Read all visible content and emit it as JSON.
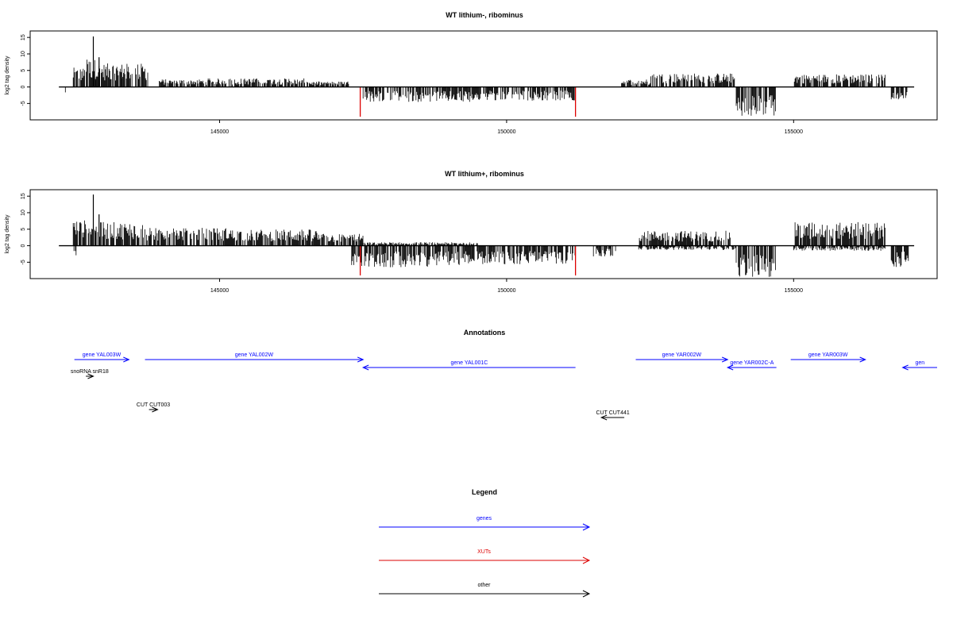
{
  "chart_data": [
    {
      "type": "bar",
      "title": "WT lithium-, ribominus",
      "xlabel": "",
      "ylabel": "log2 tag density",
      "xlim": [
        141700,
        157500
      ],
      "ylim": [
        -9,
        16
      ],
      "xticks": [
        "145000",
        "150000",
        "155000"
      ],
      "xtick_values": [
        145000,
        150000,
        155000
      ],
      "yticks": [
        "-5",
        "0",
        "5",
        "10",
        "15"
      ],
      "ytick_values": [
        -5,
        0,
        5,
        10,
        15
      ],
      "baseline_range": [
        142200,
        157100
      ],
      "forward_strand_blocks": [
        {
          "start": 142450,
          "end": 142650,
          "level": 4.5
        },
        {
          "start": 142650,
          "end": 142850,
          "level": 6.5
        },
        {
          "start": 142850,
          "end": 143300,
          "level": 5.5
        },
        {
          "start": 143300,
          "end": 143750,
          "level": 5.5
        },
        {
          "start": 143950,
          "end": 144800,
          "level": 1.8
        },
        {
          "start": 144800,
          "end": 146500,
          "level": 2.0
        },
        {
          "start": 146500,
          "end": 147300,
          "level": 1.3
        },
        {
          "start": 152000,
          "end": 152500,
          "level": 1.8
        },
        {
          "start": 152500,
          "end": 154000,
          "level": 3.2
        },
        {
          "start": 154000,
          "end": 154000,
          "level": 0
        },
        {
          "start": 155000,
          "end": 156600,
          "level": 3.0
        }
      ],
      "reverse_strand_blocks": [
        {
          "start": 142300,
          "end": 142320,
          "level": -2.0
        },
        {
          "start": 147500,
          "end": 149400,
          "level": -3.5
        },
        {
          "start": 149400,
          "end": 151200,
          "level": -3.2
        },
        {
          "start": 154000,
          "end": 154700,
          "level": -7.0
        },
        {
          "start": 156700,
          "end": 157000,
          "level": -3.0
        }
      ],
      "peaks": [
        {
          "x": 142800,
          "y": 15.3
        },
        {
          "x": 142900,
          "y": 9.0
        }
      ],
      "highlight_marks": [
        {
          "x": 147450,
          "y": -9,
          "color": "#dd0000"
        },
        {
          "x": 151200,
          "y": -9,
          "color": "#dd0000"
        }
      ]
    },
    {
      "type": "bar",
      "title": "WT lithium+, ribominus",
      "xlabel": "",
      "ylabel": "log2 tag density",
      "xlim": [
        141700,
        157500
      ],
      "ylim": [
        -9,
        16
      ],
      "xticks": [
        "145000",
        "150000",
        "155000"
      ],
      "xtick_values": [
        145000,
        150000,
        155000
      ],
      "yticks": [
        "-5",
        "0",
        "5",
        "10",
        "15"
      ],
      "ytick_values": [
        -5,
        0,
        5,
        10,
        15
      ],
      "baseline_range": [
        142200,
        157100
      ],
      "forward_strand_blocks": [
        {
          "start": 142450,
          "end": 142850,
          "level": 6.0
        },
        {
          "start": 142850,
          "end": 143700,
          "level": 5.5
        },
        {
          "start": 143700,
          "end": 145200,
          "level": 4.2
        },
        {
          "start": 145200,
          "end": 146700,
          "level": 3.8
        },
        {
          "start": 146700,
          "end": 147500,
          "level": 2.8
        },
        {
          "start": 147500,
          "end": 149500,
          "level": 0.8
        },
        {
          "start": 152300,
          "end": 153900,
          "level": 3.5
        },
        {
          "start": 155000,
          "end": 156600,
          "level": 5.5
        }
      ],
      "reverse_strand_blocks": [
        {
          "start": 142450,
          "end": 142500,
          "level": -2.5
        },
        {
          "start": 147300,
          "end": 148800,
          "level": -5.0
        },
        {
          "start": 148800,
          "end": 151200,
          "level": -4.5
        },
        {
          "start": 151500,
          "end": 151900,
          "level": -2.5
        },
        {
          "start": 152300,
          "end": 154000,
          "level": -1.0
        },
        {
          "start": 154000,
          "end": 154700,
          "level": -7.5
        },
        {
          "start": 155000,
          "end": 156600,
          "level": -1.2
        },
        {
          "start": 156700,
          "end": 157000,
          "level": -5.0
        }
      ],
      "peaks": [
        {
          "x": 142800,
          "y": 15.5
        },
        {
          "x": 142900,
          "y": 9.5
        }
      ],
      "highlight_marks": [
        {
          "x": 147450,
          "y": -9,
          "color": "#dd0000"
        },
        {
          "x": 151200,
          "y": -9,
          "color": "#dd0000"
        }
      ]
    }
  ],
  "annotations": {
    "title": "Annotations",
    "features": [
      {
        "label": "gene YAL003W",
        "start": 142470,
        "end": 143420,
        "strand": "+",
        "row": 0,
        "color": "#0000ff"
      },
      {
        "label": "gene YAL002W",
        "start": 143700,
        "end": 147500,
        "strand": "+",
        "row": 0,
        "color": "#0000ff"
      },
      {
        "label": "gene YAL001C",
        "start": 147500,
        "end": 151200,
        "strand": "-",
        "row": 1,
        "color": "#0000ff"
      },
      {
        "label": "gene YAR002W",
        "start": 152250,
        "end": 153850,
        "strand": "+",
        "row": 0,
        "color": "#0000ff"
      },
      {
        "label": "gene YAR002C-A",
        "start": 153850,
        "end": 154700,
        "strand": "-",
        "row": 1,
        "color": "#0000ff"
      },
      {
        "label": "gene YAR003W",
        "start": 154950,
        "end": 156250,
        "strand": "+",
        "row": 0,
        "color": "#0000ff"
      },
      {
        "label": "gen",
        "start": 156900,
        "end": 157500,
        "strand": "-",
        "row": 1,
        "color": "#0000ff"
      },
      {
        "label": "snoRNA snR18",
        "start": 142670,
        "end": 142800,
        "strand": "+",
        "row": 2,
        "color": "#000000"
      },
      {
        "label": "CUT CUT003",
        "start": 143770,
        "end": 143920,
        "strand": "+",
        "row": 4,
        "color": "#000000"
      },
      {
        "label": "CUT CUT441",
        "start": 151650,
        "end": 152050,
        "strand": "-",
        "row": 5,
        "color": "#000000"
      }
    ]
  },
  "legend": {
    "title": "Legend",
    "items": [
      {
        "label": "genes",
        "color": "#0000ff"
      },
      {
        "label": "XUTs",
        "color": "#dd0000"
      },
      {
        "label": "other",
        "color": "#000000"
      }
    ]
  }
}
